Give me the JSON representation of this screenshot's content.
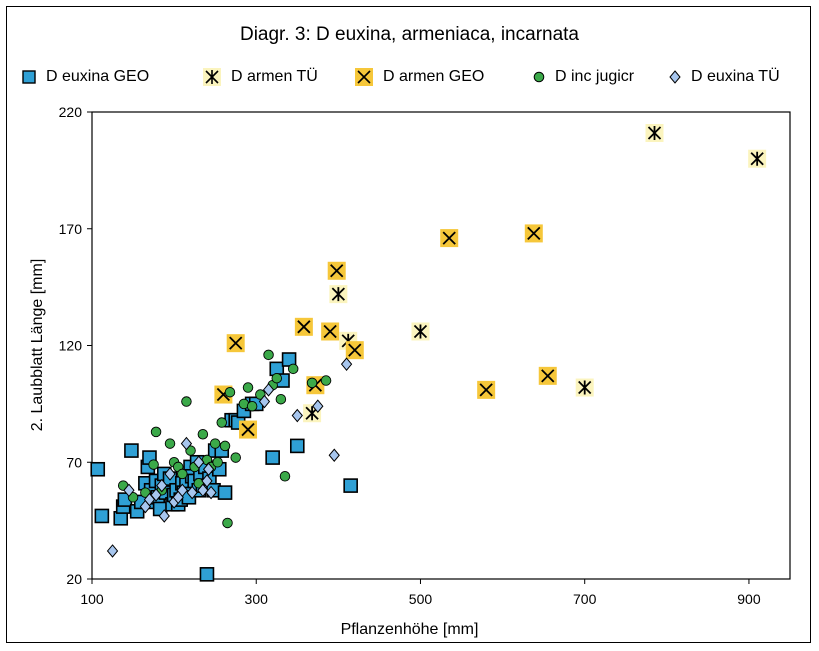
{
  "chart_data": {
    "type": "scatter",
    "title": "Diagr. 3: D euxina, armeniaca, incarnata",
    "xlabel": "Pflanzenhöhe [mm]",
    "ylabel": "2. Laubblatt Länge [mm]",
    "xlim": [
      100,
      950
    ],
    "ylim": [
      20,
      220
    ],
    "xticks": [
      100,
      300,
      500,
      700,
      900
    ],
    "yticks": [
      20,
      70,
      120,
      170,
      220
    ],
    "xtick_labels": [
      "100",
      "300",
      "500",
      "700",
      "900"
    ],
    "ytick_labels": [
      "20",
      "70",
      "120",
      "170",
      "220"
    ],
    "grid": false,
    "legend_position": "top",
    "series": [
      {
        "name": "D euxina GEO",
        "marker": "square",
        "color": "#2FA0D5",
        "points": [
          [
            107,
            67
          ],
          [
            112,
            47
          ],
          [
            135,
            46
          ],
          [
            138,
            51
          ],
          [
            140,
            54
          ],
          [
            148,
            75
          ],
          [
            155,
            49
          ],
          [
            160,
            53
          ],
          [
            165,
            61
          ],
          [
            168,
            68
          ],
          [
            170,
            72
          ],
          [
            172,
            58
          ],
          [
            175,
            53
          ],
          [
            178,
            62
          ],
          [
            180,
            55
          ],
          [
            183,
            50
          ],
          [
            185,
            60
          ],
          [
            188,
            65
          ],
          [
            190,
            57
          ],
          [
            195,
            63
          ],
          [
            198,
            52
          ],
          [
            200,
            56
          ],
          [
            203,
            58
          ],
          [
            205,
            52
          ],
          [
            208,
            54
          ],
          [
            210,
            61
          ],
          [
            212,
            57
          ],
          [
            215,
            62
          ],
          [
            218,
            55
          ],
          [
            220,
            68
          ],
          [
            222,
            64
          ],
          [
            225,
            62
          ],
          [
            228,
            70
          ],
          [
            230,
            58
          ],
          [
            232,
            65
          ],
          [
            235,
            60
          ],
          [
            238,
            68
          ],
          [
            240,
            22
          ],
          [
            243,
            63
          ],
          [
            248,
            58
          ],
          [
            250,
            75
          ],
          [
            255,
            67
          ],
          [
            258,
            75
          ],
          [
            262,
            57
          ],
          [
            270,
            88
          ],
          [
            275,
            88
          ],
          [
            278,
            87
          ],
          [
            285,
            92
          ],
          [
            295,
            95
          ],
          [
            300,
            95
          ],
          [
            320,
            72
          ],
          [
            325,
            110
          ],
          [
            332,
            105
          ],
          [
            340,
            114
          ],
          [
            350,
            77
          ],
          [
            415,
            60
          ]
        ]
      },
      {
        "name": "D armen TÜ",
        "marker": "asterisk",
        "color": "#FBF4BE",
        "points": [
          [
            368,
            91
          ],
          [
            400,
            142
          ],
          [
            412,
            122
          ],
          [
            500,
            126
          ],
          [
            700,
            102
          ],
          [
            785,
            211
          ],
          [
            910,
            200
          ]
        ]
      },
      {
        "name": "D armen GEO",
        "marker": "x-square",
        "color": "#F6C73A",
        "points": [
          [
            260,
            99
          ],
          [
            275,
            121
          ],
          [
            290,
            84
          ],
          [
            358,
            128
          ],
          [
            372,
            103
          ],
          [
            390,
            126
          ],
          [
            398,
            152
          ],
          [
            420,
            118
          ],
          [
            535,
            166
          ],
          [
            580,
            101
          ],
          [
            638,
            168
          ],
          [
            655,
            107
          ]
        ]
      },
      {
        "name": "D inc jugicr",
        "marker": "circle",
        "color": "#3BA949",
        "points": [
          [
            138,
            60
          ],
          [
            150,
            55
          ],
          [
            165,
            57
          ],
          [
            175,
            69
          ],
          [
            178,
            83
          ],
          [
            185,
            58
          ],
          [
            195,
            78
          ],
          [
            200,
            70
          ],
          [
            205,
            68
          ],
          [
            210,
            65
          ],
          [
            215,
            96
          ],
          [
            220,
            75
          ],
          [
            225,
            68
          ],
          [
            230,
            61
          ],
          [
            235,
            82
          ],
          [
            240,
            71
          ],
          [
            245,
            68
          ],
          [
            250,
            78
          ],
          [
            253,
            70
          ],
          [
            258,
            87
          ],
          [
            262,
            77
          ],
          [
            265,
            44
          ],
          [
            268,
            100
          ],
          [
            275,
            72
          ],
          [
            285,
            95
          ],
          [
            290,
            102
          ],
          [
            295,
            94
          ],
          [
            305,
            99
          ],
          [
            315,
            116
          ],
          [
            320,
            103
          ],
          [
            325,
            106
          ],
          [
            330,
            97
          ],
          [
            335,
            64
          ],
          [
            345,
            110
          ],
          [
            368,
            104
          ],
          [
            385,
            105
          ]
        ]
      },
      {
        "name": "D euxina TÜ",
        "marker": "diamond",
        "color": "#A7C6EE",
        "points": [
          [
            125,
            32
          ],
          [
            145,
            58
          ],
          [
            165,
            51
          ],
          [
            170,
            54
          ],
          [
            178,
            56
          ],
          [
            185,
            60
          ],
          [
            188,
            47
          ],
          [
            195,
            65
          ],
          [
            200,
            53
          ],
          [
            205,
            55
          ],
          [
            210,
            58
          ],
          [
            215,
            78
          ],
          [
            222,
            57
          ],
          [
            230,
            70
          ],
          [
            235,
            58
          ],
          [
            240,
            62
          ],
          [
            242,
            67
          ],
          [
            245,
            57
          ],
          [
            310,
            96
          ],
          [
            315,
            101
          ],
          [
            350,
            90
          ],
          [
            375,
            94
          ],
          [
            395,
            73
          ],
          [
            410,
            112
          ]
        ]
      }
    ]
  }
}
